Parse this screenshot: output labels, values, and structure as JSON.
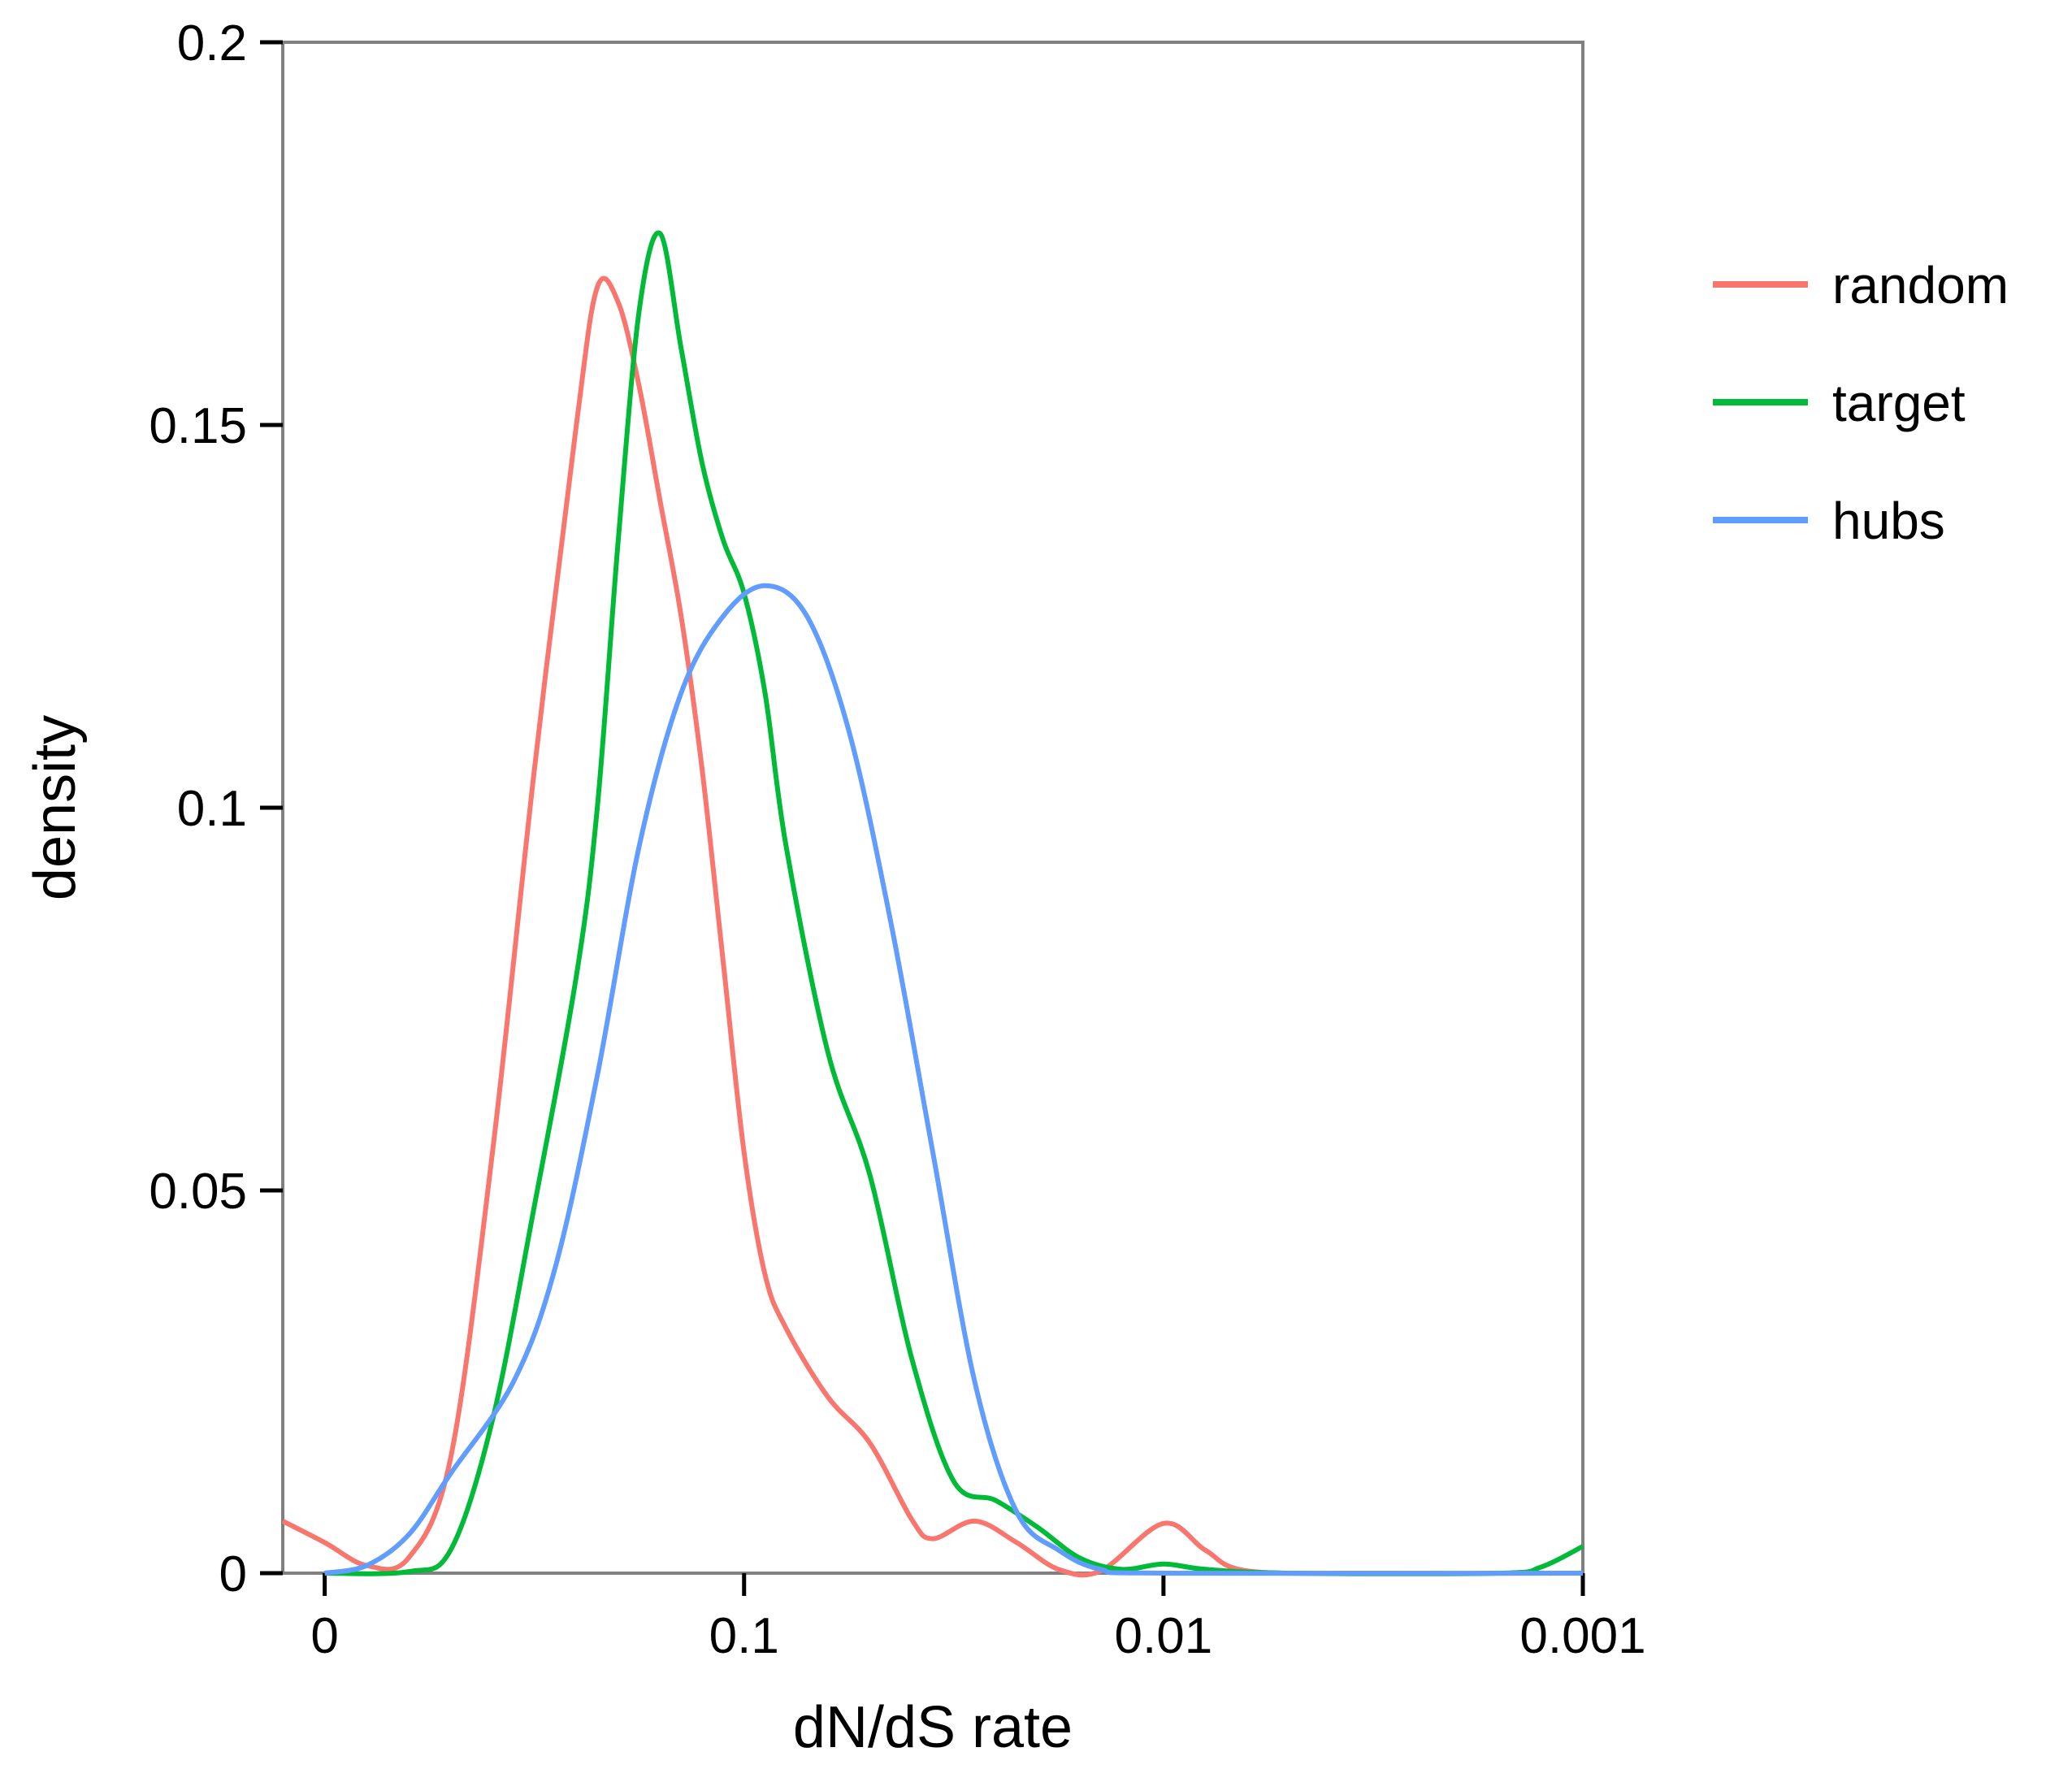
{
  "chart_data": {
    "type": "line",
    "title": "",
    "xlabel": "dN/dS rate",
    "ylabel": "density",
    "x_scale": "reversed-log10",
    "x_ticks": [
      "0",
      "0.1",
      "0.01",
      "0.001"
    ],
    "y_ticks": [
      "0",
      "0.05",
      "0.1",
      "0.15",
      "0.2"
    ],
    "ylim": [
      0,
      0.2
    ],
    "grid": false,
    "legend_position": "right",
    "series": [
      {
        "name": "random",
        "color": "#F8766D",
        "points": [
          [
            -0.1,
            0.0068
          ],
          [
            0.0,
            0.004
          ],
          [
            0.1,
            0.001
          ],
          [
            0.2,
            0.002
          ],
          [
            0.3,
            0.015
          ],
          [
            0.4,
            0.055
          ],
          [
            0.5,
            0.105
          ],
          [
            0.6,
            0.15
          ],
          [
            0.65,
            0.168
          ],
          [
            0.7,
            0.166
          ],
          [
            0.75,
            0.155
          ],
          [
            0.8,
            0.14
          ],
          [
            0.85,
            0.125
          ],
          [
            0.9,
            0.105
          ],
          [
            0.95,
            0.08
          ],
          [
            1.0,
            0.055
          ],
          [
            1.05,
            0.039
          ],
          [
            1.1,
            0.032
          ],
          [
            1.2,
            0.023
          ],
          [
            1.3,
            0.017
          ],
          [
            1.4,
            0.007
          ],
          [
            1.45,
            0.0045
          ],
          [
            1.55,
            0.0068
          ],
          [
            1.65,
            0.004
          ],
          [
            1.75,
            0.0005
          ],
          [
            1.85,
            0.0003
          ],
          [
            2.0,
            0.0065
          ],
          [
            2.1,
            0.003
          ],
          [
            2.2,
            0.0003
          ],
          [
            2.5,
            0.0
          ],
          [
            3.0,
            0.0
          ]
        ]
      },
      {
        "name": "target",
        "color": "#00BA38",
        "points": [
          [
            0.0,
            0.0
          ],
          [
            0.2,
            0.0002
          ],
          [
            0.3,
            0.003
          ],
          [
            0.4,
            0.02
          ],
          [
            0.5,
            0.048
          ],
          [
            0.6,
            0.078
          ],
          [
            0.65,
            0.1
          ],
          [
            0.7,
            0.135
          ],
          [
            0.75,
            0.165
          ],
          [
            0.8,
            0.175
          ],
          [
            0.85,
            0.16
          ],
          [
            0.9,
            0.145
          ],
          [
            0.95,
            0.135
          ],
          [
            1.0,
            0.128
          ],
          [
            1.05,
            0.115
          ],
          [
            1.1,
            0.095
          ],
          [
            1.2,
            0.068
          ],
          [
            1.3,
            0.052
          ],
          [
            1.4,
            0.028
          ],
          [
            1.5,
            0.012
          ],
          [
            1.6,
            0.0095
          ],
          [
            1.7,
            0.006
          ],
          [
            1.8,
            0.002
          ],
          [
            1.9,
            0.0005
          ],
          [
            2.0,
            0.0012
          ],
          [
            2.1,
            0.0005
          ],
          [
            2.3,
            0.0
          ],
          [
            2.8,
            0.0
          ],
          [
            2.9,
            0.0008
          ],
          [
            3.0,
            0.0035
          ]
        ]
      },
      {
        "name": "hubs",
        "color": "#619CFF",
        "points": [
          [
            0.0,
            0.0
          ],
          [
            0.1,
            0.001
          ],
          [
            0.2,
            0.005
          ],
          [
            0.3,
            0.013
          ],
          [
            0.45,
            0.025
          ],
          [
            0.55,
            0.04
          ],
          [
            0.65,
            0.065
          ],
          [
            0.75,
            0.095
          ],
          [
            0.85,
            0.115
          ],
          [
            0.95,
            0.125
          ],
          [
            1.05,
            0.129
          ],
          [
            1.15,
            0.125
          ],
          [
            1.25,
            0.11
          ],
          [
            1.35,
            0.085
          ],
          [
            1.45,
            0.055
          ],
          [
            1.55,
            0.025
          ],
          [
            1.65,
            0.008
          ],
          [
            1.75,
            0.003
          ],
          [
            1.85,
            0.0005
          ],
          [
            2.0,
            0.0
          ],
          [
            3.0,
            0.0
          ]
        ]
      }
    ]
  }
}
